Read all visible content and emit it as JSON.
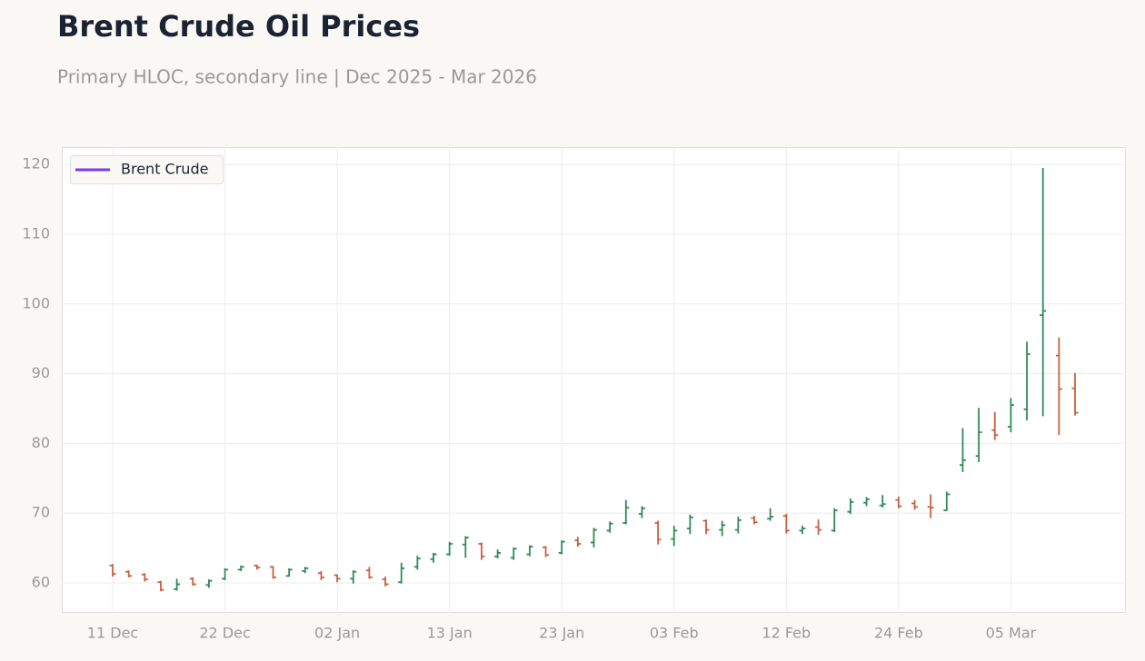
{
  "chart_data": {
    "type": "ohlc",
    "title": "Brent Crude Oil Prices",
    "subtitle": "Primary HLOC, secondary line | Dec 2025 - Mar 2026",
    "categories": [
      "11 Dec",
      null,
      null,
      null,
      null,
      null,
      null,
      "22 Dec",
      null,
      null,
      null,
      null,
      null,
      null,
      "02 Jan",
      null,
      null,
      null,
      null,
      null,
      null,
      "13 Jan",
      null,
      null,
      null,
      null,
      null,
      null,
      "23 Jan",
      null,
      null,
      null,
      null,
      null,
      null,
      "03 Feb",
      null,
      null,
      null,
      null,
      null,
      null,
      "12 Feb",
      null,
      null,
      null,
      null,
      null,
      null,
      "24 Feb",
      null,
      null,
      null,
      null,
      null,
      null,
      "05 Mar",
      null,
      null,
      null,
      null
    ],
    "open": [
      62.5,
      61.6,
      61.2,
      60.1,
      59.1,
      60.6,
      59.7,
      60.6,
      61.9,
      62.5,
      62.3,
      61.0,
      61.7,
      61.4,
      61.1,
      60.6,
      61.8,
      60.5,
      60.1,
      62.3,
      63.4,
      64.1,
      65.5,
      65.6,
      63.8,
      63.6,
      64.1,
      65.1,
      64.3,
      66.1,
      65.8,
      67.5,
      68.6,
      69.9,
      68.6,
      66.3,
      67.8,
      68.9,
      67.6,
      67.6,
      69.3,
      69.2,
      69.6,
      67.5,
      68.0,
      67.5,
      70.2,
      71.5,
      71.1,
      71.9,
      71.4,
      70.9,
      70.4,
      76.9,
      78.2,
      81.9,
      82.4,
      84.9,
      98.4,
      92.6,
      87.9
    ],
    "high": [
      62.7,
      61.8,
      61.4,
      60.3,
      60.6,
      60.8,
      60.5,
      62.1,
      62.5,
      62.6,
      62.4,
      62.1,
      62.3,
      61.7,
      61.2,
      61.8,
      62.3,
      60.9,
      62.9,
      63.9,
      64.3,
      65.9,
      66.7,
      65.8,
      64.8,
      65.1,
      65.4,
      65.3,
      66.1,
      66.6,
      67.9,
      68.8,
      71.9,
      71.0,
      68.9,
      68.2,
      69.8,
      69.1,
      68.9,
      69.5,
      69.6,
      70.7,
      69.9,
      68.2,
      69.1,
      70.7,
      72.1,
      72.3,
      72.6,
      72.4,
      71.9,
      72.7,
      73.1,
      82.2,
      85.1,
      84.5,
      86.5,
      94.6,
      119.5,
      95.2,
      90.1
    ],
    "low": [
      60.9,
      60.8,
      60.2,
      58.8,
      58.9,
      59.6,
      59.3,
      60.4,
      61.7,
      61.9,
      60.6,
      60.9,
      61.4,
      60.4,
      60.1,
      59.9,
      60.6,
      59.5,
      59.9,
      61.9,
      62.9,
      63.9,
      63.6,
      63.3,
      63.5,
      63.3,
      63.8,
      63.7,
      64.1,
      65.2,
      65.1,
      67.2,
      68.4,
      69.3,
      65.5,
      65.3,
      67.0,
      67.0,
      66.7,
      67.1,
      68.4,
      68.9,
      67.1,
      67.0,
      66.9,
      67.3,
      69.9,
      71.0,
      70.8,
      70.7,
      70.5,
      69.3,
      70.3,
      75.9,
      77.3,
      80.5,
      81.6,
      83.3,
      83.9,
      81.2,
      84.0
    ],
    "close": [
      61.3,
      61.0,
      60.5,
      59.0,
      59.8,
      59.8,
      60.3,
      61.9,
      62.3,
      62.2,
      60.8,
      61.9,
      62.1,
      60.8,
      60.6,
      61.6,
      60.8,
      59.8,
      62.1,
      63.5,
      64.1,
      65.6,
      66.5,
      63.8,
      64.3,
      64.9,
      65.2,
      64.0,
      65.9,
      65.6,
      67.6,
      68.5,
      70.8,
      70.7,
      66.2,
      67.5,
      69.4,
      67.6,
      68.3,
      69.0,
      68.7,
      69.5,
      67.5,
      67.8,
      67.6,
      70.4,
      71.6,
      72.0,
      71.3,
      71.0,
      70.9,
      70.8,
      72.7,
      77.6,
      81.6,
      81.2,
      85.5,
      92.8,
      99.0,
      87.8,
      84.4
    ],
    "up_color": "#2e8b57",
    "down_color": "#c8603f",
    "series": [
      {
        "name": "Brent Crude",
        "color": "#7c3aed"
      }
    ],
    "ylim": [
      55.7,
      122.5
    ],
    "yticks": [
      60,
      70,
      80,
      90,
      100,
      110,
      120
    ],
    "grid": true,
    "legend": "upper-left"
  }
}
